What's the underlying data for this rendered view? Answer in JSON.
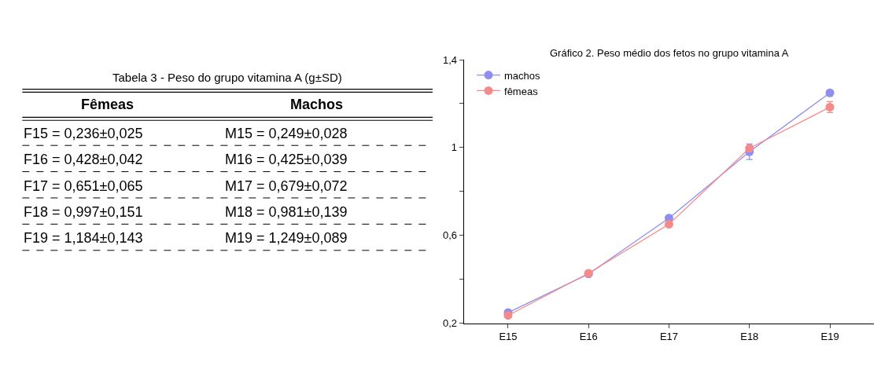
{
  "chart_data": {
    "type": "line",
    "title": "Gráfico 2. Peso médio dos fetos no grupo vitamina A",
    "categories": [
      "E15",
      "E16",
      "E17",
      "E18",
      "E19"
    ],
    "series": [
      {
        "name": "machos",
        "color": "#8f8ff0",
        "values": [
          0.249,
          0.425,
          0.679,
          0.981,
          1.249
        ],
        "errors": [
          null,
          null,
          null,
          0.035,
          null
        ]
      },
      {
        "name": "fêmeas",
        "color": "#f58a8a",
        "values": [
          0.236,
          0.428,
          0.651,
          0.997,
          1.184
        ],
        "errors": [
          null,
          null,
          null,
          null,
          0.025
        ]
      }
    ],
    "ylim": [
      0.2,
      1.4
    ],
    "yticks": [
      {
        "value": 0.2,
        "label": "0,2"
      },
      {
        "value": 0.4,
        "label": null
      },
      {
        "value": 0.6,
        "label": "0,6"
      },
      {
        "value": 0.8,
        "label": null
      },
      1,
      {
        "value": 1.2,
        "label": null
      },
      {
        "value": 1.4,
        "label": "1,4"
      }
    ],
    "legend": "top left",
    "marker": "circle",
    "line_style": "solid",
    "annotations": [
      "Tabela 3 - Peso do grupo vitamina A (g±SD)",
      "Fêmeas",
      "Machos",
      "F15 = 0,236±0,025",
      "M15 = 0,249±0,028",
      "F16 = 0,428±0,042",
      "M16 = 0,425±0,039",
      "F17 = 0,651±0,065",
      "M17 = 0,679±0,072",
      "F18 = 0,997±0,151",
      "M18 = 0,981±0,139",
      "F19 = 1,184±0,143",
      "M19 = 1,249±0,089"
    ]
  }
}
